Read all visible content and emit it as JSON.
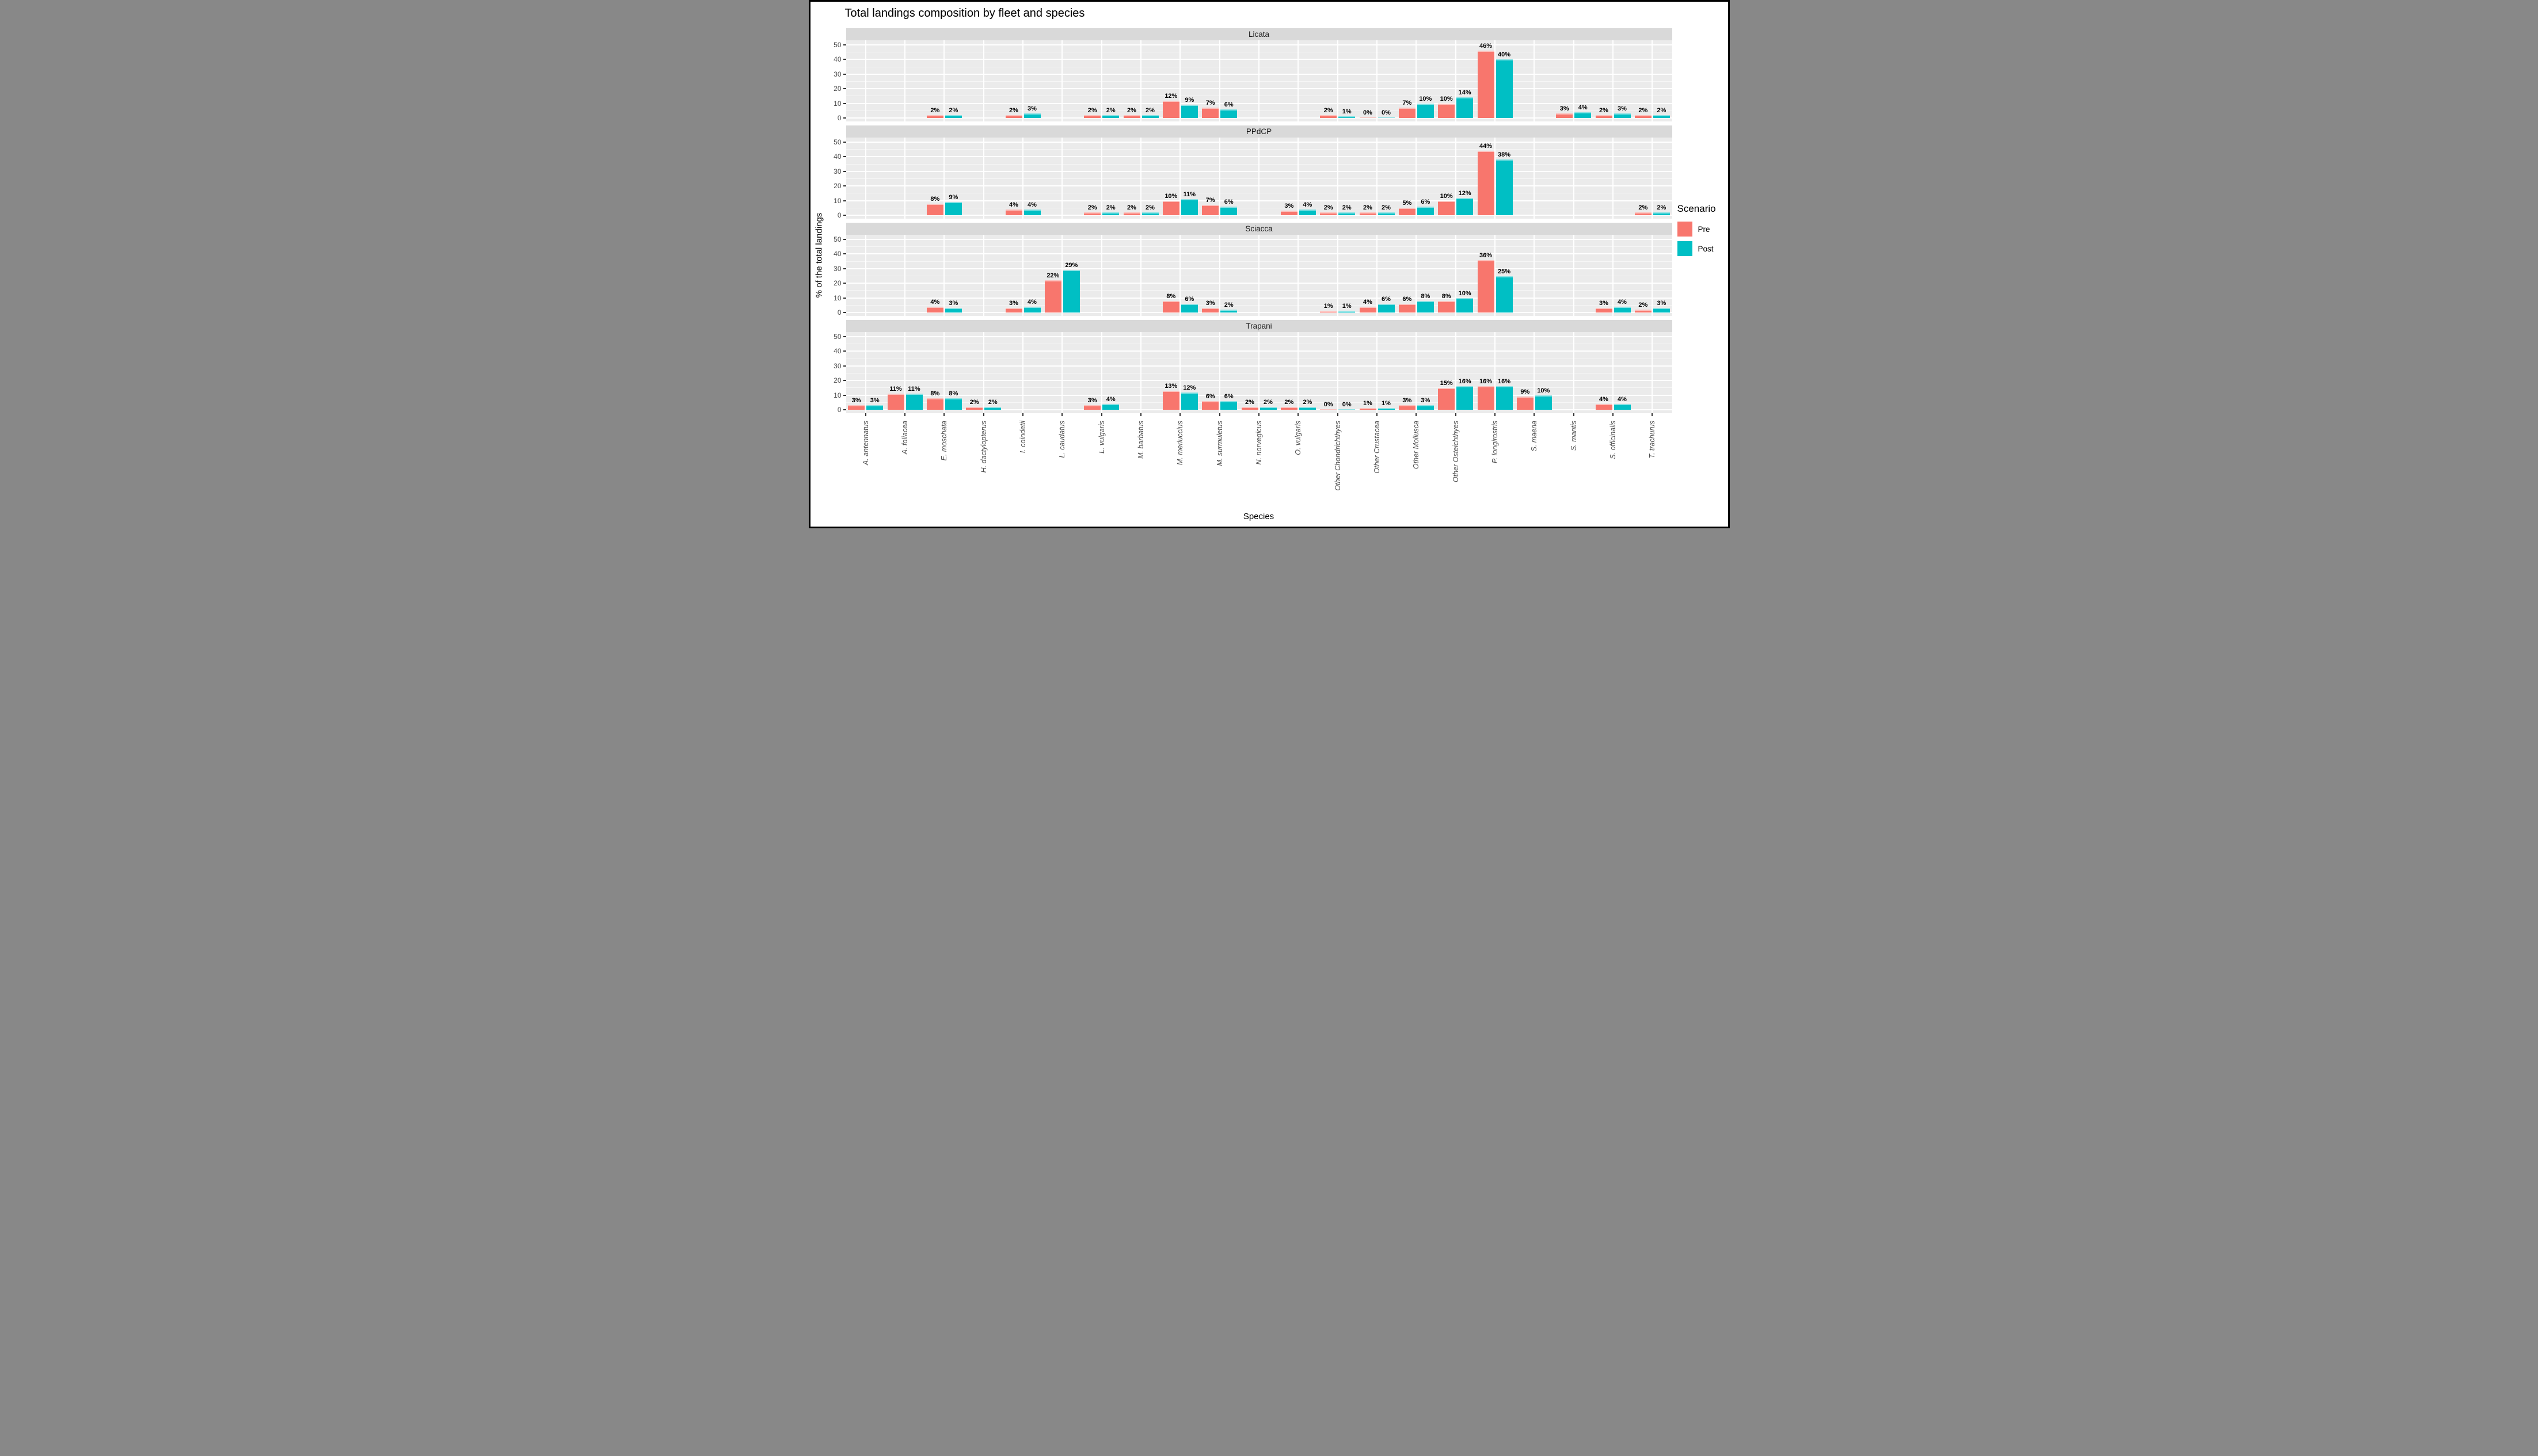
{
  "chart_data": {
    "type": "bar",
    "title": "Total landings composition by fleet and species",
    "xlabel": "Species",
    "ylabel": "% of the total landings",
    "ylim": [
      0,
      50
    ],
    "yticks": [
      0,
      10,
      20,
      30,
      40,
      50
    ],
    "yticks_minor": [
      5,
      15,
      25,
      35,
      45
    ],
    "grid": "major-white on gray panel, ggplot style",
    "value_label_format": "percent",
    "legend": {
      "title": "Scenario",
      "position": "right",
      "entries": [
        {
          "name": "Pre",
          "color": "#F8766D"
        },
        {
          "name": "Post",
          "color": "#00BFC4"
        }
      ]
    },
    "categories": [
      "A. antennatus",
      "A. foliacea",
      "E. moschata",
      "H. dactylopterus",
      "I. coindetii",
      "L. caudatus",
      "L. vulgaris",
      "M. barbatus",
      "M. merluccius",
      "M. surmuletus",
      "N. norvegicus",
      "O. vulgaris",
      "Other Chondrichthyes",
      "Other Crustacea",
      "Other Mollusca",
      "Other Osteichthyes",
      "P. longirostris",
      "S. maena",
      "S. mantis",
      "S. officinalis",
      "T. trachurus"
    ],
    "facets": [
      {
        "name": "Licata",
        "series": [
          {
            "name": "Pre",
            "values": [
              null,
              null,
              2,
              null,
              2,
              null,
              2,
              2,
              12,
              7,
              null,
              null,
              2,
              0,
              7,
              10,
              46,
              null,
              3,
              2,
              2
            ]
          },
          {
            "name": "Post",
            "values": [
              null,
              null,
              2,
              null,
              3,
              null,
              2,
              2,
              9,
              6,
              null,
              null,
              1,
              0,
              10,
              14,
              40,
              null,
              4,
              3,
              2
            ]
          }
        ]
      },
      {
        "name": "PPdCP",
        "series": [
          {
            "name": "Pre",
            "values": [
              null,
              null,
              8,
              null,
              4,
              null,
              2,
              2,
              10,
              7,
              null,
              3,
              2,
              2,
              5,
              10,
              44,
              null,
              null,
              null,
              2
            ]
          },
          {
            "name": "Post",
            "values": [
              null,
              null,
              9,
              null,
              4,
              null,
              2,
              2,
              11,
              6,
              null,
              4,
              2,
              2,
              6,
              12,
              38,
              null,
              null,
              null,
              2
            ]
          }
        ]
      },
      {
        "name": "Sciacca",
        "series": [
          {
            "name": "Pre",
            "values": [
              null,
              null,
              4,
              null,
              3,
              22,
              null,
              null,
              8,
              3,
              null,
              null,
              1,
              4,
              6,
              8,
              36,
              null,
              null,
              3,
              2
            ]
          },
          {
            "name": "Post",
            "values": [
              null,
              null,
              3,
              null,
              4,
              29,
              null,
              null,
              6,
              2,
              null,
              null,
              1,
              6,
              8,
              10,
              25,
              null,
              null,
              4,
              3
            ]
          }
        ]
      },
      {
        "name": "Trapani",
        "series": [
          {
            "name": "Pre",
            "values": [
              3,
              11,
              8,
              2,
              null,
              null,
              3,
              null,
              13,
              6,
              2,
              2,
              0,
              1,
              3,
              15,
              16,
              9,
              null,
              4,
              null
            ]
          },
          {
            "name": "Post",
            "values": [
              3,
              11,
              8,
              2,
              null,
              null,
              4,
              null,
              12,
              6,
              2,
              2,
              0,
              1,
              3,
              16,
              16,
              10,
              null,
              4,
              null
            ]
          }
        ]
      }
    ],
    "colors": {
      "panel_bg": "#EBEBEB",
      "strip_bg": "#D9D9D9",
      "gridline": "#FFFFFF",
      "tick_text": "#4D4D4D",
      "pre": "#F8766D",
      "post": "#00BFC4"
    }
  }
}
